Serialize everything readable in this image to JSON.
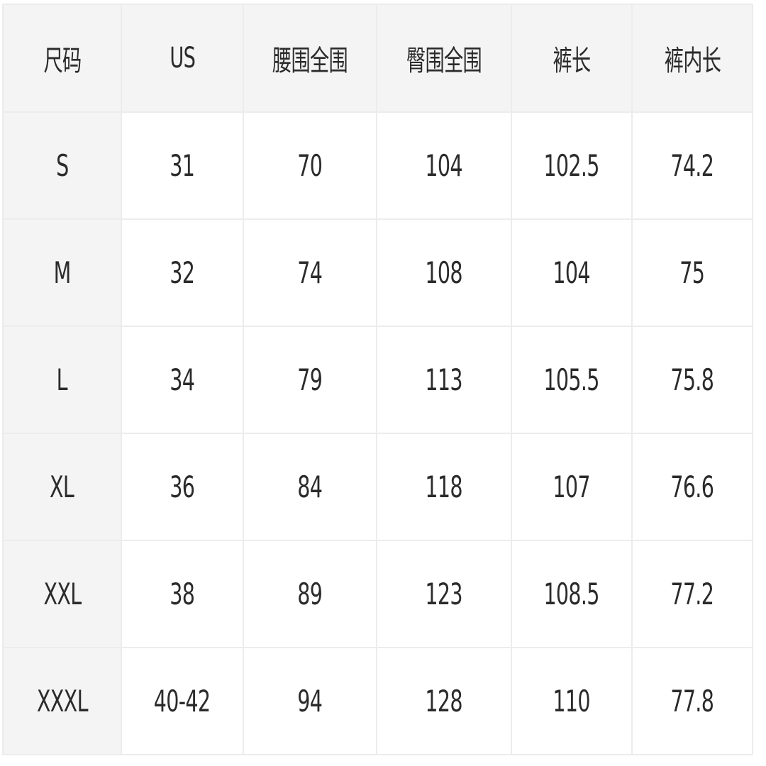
{
  "table": {
    "headers": [
      "尺码",
      "US",
      "腰围全围",
      "臀围全围",
      "裤长",
      "裤内长"
    ],
    "rows": [
      [
        "S",
        "31",
        "70",
        "104",
        "102.5",
        "74.2"
      ],
      [
        "M",
        "32",
        "74",
        "108",
        "104",
        "75"
      ],
      [
        "L",
        "34",
        "79",
        "113",
        "105.5",
        "75.8"
      ],
      [
        "XL",
        "36",
        "84",
        "118",
        "107",
        "76.6"
      ],
      [
        "XXL",
        "38",
        "89",
        "123",
        "108.5",
        "77.2"
      ],
      [
        "XXXL",
        "40-42",
        "94",
        "128",
        "110",
        "77.8"
      ]
    ]
  }
}
